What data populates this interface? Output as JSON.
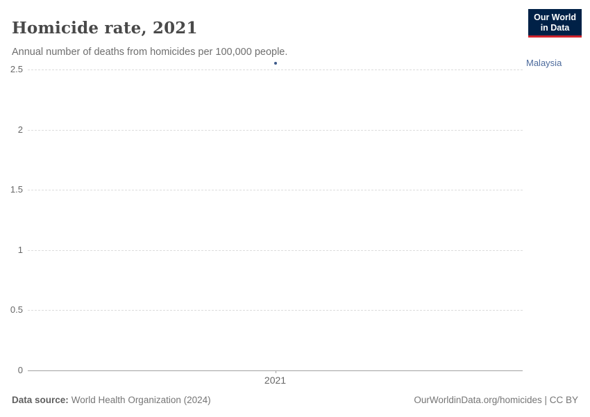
{
  "header": {
    "title": "Homicide rate, 2021",
    "subtitle": "Annual number of deaths from homicides per 100,000 people.",
    "logo": {
      "line1": "Our World",
      "line2": "in Data",
      "background_color": "#002147",
      "accent_color": "#d1242d"
    }
  },
  "chart_data": {
    "type": "scatter",
    "title": "Homicide rate, 2021",
    "subtitle": "Annual number of deaths from homicides per 100,000 people.",
    "series": [
      {
        "name": "Malaysia",
        "color": "#3d5a8a",
        "label_color": "#4c6a9c",
        "points": [
          {
            "x": 2021,
            "y": 2.55
          }
        ]
      }
    ],
    "x_ticks": [
      "2021"
    ],
    "y_ticks": [
      0,
      0.5,
      1,
      1.5,
      2,
      2.5
    ],
    "ylim": [
      0,
      2.6
    ],
    "grid": "horizontal-dashed",
    "legend_position": "right-of-point",
    "grid_color": "#dcdcdc",
    "axis_color": "#a1a1a1",
    "tick_label_color": "#666666"
  },
  "footer": {
    "source_label": "Data source:",
    "source_value": "World Health Organization (2024)",
    "attribution": "OurWorldinData.org/homicides | CC BY"
  }
}
